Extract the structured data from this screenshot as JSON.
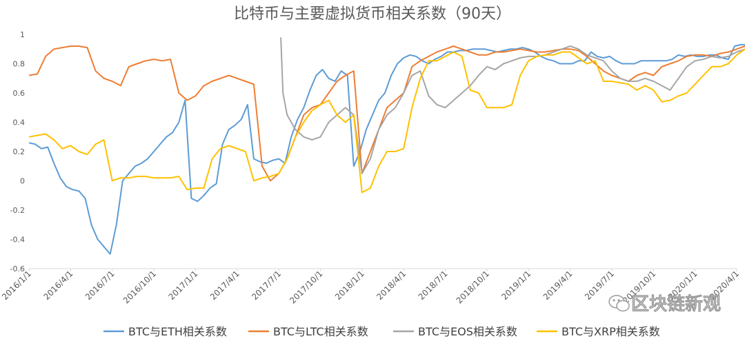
{
  "chart_data": {
    "type": "line",
    "title": "比特币与主要虚拟货币相关系数（90天）",
    "ylim": [
      -0.6,
      1
    ],
    "y_ticks": [
      "1",
      "0.8",
      "0.6",
      "0.4",
      "0.2",
      "0",
      "-0.2",
      "-0.4",
      "-0.6"
    ],
    "x_ticks": [
      "2016/1/1",
      "2016/4/1",
      "2016/7/1",
      "2016/10/1",
      "2017/1/1",
      "2017/4/1",
      "2017/7/1",
      "2017/10/1",
      "2018/1/1",
      "2018/4/1",
      "2018/7/1",
      "2018/10/1",
      "2019/1/1",
      "2019/4/1",
      "2019/7/1",
      "2019/10/1",
      "2020/1/1",
      "2020/4/1"
    ],
    "grid": false,
    "legend_position": "bottom",
    "series": [
      {
        "name": "BTC与ETH相关系数",
        "color": "#5B9BD5",
        "x": [
          0,
          0.15,
          0.3,
          0.45,
          0.6,
          0.75,
          0.9,
          1.05,
          1.2,
          1.35,
          1.5,
          1.65,
          1.8,
          1.95,
          2.1,
          2.25,
          2.4,
          2.55,
          2.7,
          2.85,
          3.0,
          3.15,
          3.3,
          3.45,
          3.6,
          3.75,
          3.9,
          4.05,
          4.2,
          4.35,
          4.5,
          4.65,
          4.8,
          4.95,
          5.1,
          5.25,
          5.4,
          5.55,
          5.7,
          5.85,
          6.0,
          6.15,
          6.3,
          6.45,
          6.6,
          6.75,
          6.9,
          7.05,
          7.2,
          7.35,
          7.5,
          7.65,
          7.8,
          7.95,
          8.1,
          8.25,
          8.4,
          8.55,
          8.7,
          8.85,
          9.0,
          9.15,
          9.3,
          9.45,
          9.6,
          9.75,
          9.9,
          10.05,
          10.2,
          10.35,
          10.5,
          10.65,
          10.8,
          10.95,
          11.1,
          11.25,
          11.4,
          11.55,
          11.7,
          11.85,
          12.0,
          12.15,
          12.3,
          12.45,
          12.6,
          12.75,
          12.9,
          13.05,
          13.2,
          13.35,
          13.5,
          13.65,
          13.8,
          13.95,
          14.1,
          14.25,
          14.4,
          14.55,
          14.7,
          14.85,
          15.0,
          15.15,
          15.3,
          15.45,
          15.6,
          15.75,
          15.9,
          16.05,
          16.2,
          16.35,
          16.5,
          16.65,
          16.8,
          16.95,
          17.1,
          17.25,
          17.4
        ],
        "y": [
          0.26,
          0.25,
          0.22,
          0.23,
          0.12,
          0.02,
          -0.04,
          -0.06,
          -0.07,
          -0.12,
          -0.3,
          -0.4,
          -0.45,
          -0.5,
          -0.3,
          0.0,
          0.05,
          0.1,
          0.12,
          0.15,
          0.2,
          0.25,
          0.3,
          0.33,
          0.4,
          0.55,
          -0.12,
          -0.14,
          -0.1,
          -0.05,
          -0.02,
          0.25,
          0.35,
          0.38,
          0.42,
          0.52,
          0.15,
          0.13,
          0.12,
          0.14,
          0.15,
          0.12,
          0.3,
          0.42,
          0.5,
          0.62,
          0.72,
          0.76,
          0.7,
          0.68,
          0.75,
          0.72,
          0.1,
          0.2,
          0.35,
          0.45,
          0.55,
          0.6,
          0.72,
          0.8,
          0.84,
          0.86,
          0.85,
          0.82,
          0.8,
          0.83,
          0.85,
          0.88,
          0.88,
          0.89,
          0.89,
          0.9,
          0.9,
          0.9,
          0.89,
          0.88,
          0.89,
          0.9,
          0.9,
          0.91,
          0.9,
          0.88,
          0.85,
          0.83,
          0.82,
          0.8,
          0.8,
          0.8,
          0.82,
          0.82,
          0.88,
          0.85,
          0.84,
          0.85,
          0.82,
          0.8,
          0.8,
          0.8,
          0.82,
          0.82,
          0.82,
          0.82,
          0.82,
          0.83,
          0.86,
          0.85,
          0.86,
          0.85,
          0.85,
          0.86,
          0.86,
          0.84,
          0.83,
          0.92,
          0.93,
          0.93,
          0.93
        ]
      },
      {
        "name": "BTC与LTC相关系数",
        "color": "#ED7D31",
        "x": [
          0,
          0.2,
          0.4,
          0.6,
          0.8,
          1.0,
          1.2,
          1.4,
          1.6,
          1.8,
          2.0,
          2.2,
          2.4,
          2.6,
          2.8,
          3.0,
          3.2,
          3.4,
          3.6,
          3.8,
          4.0,
          4.2,
          4.4,
          4.6,
          4.8,
          5.0,
          5.2,
          5.4,
          5.6,
          5.8,
          6.0,
          6.2,
          6.4,
          6.6,
          6.8,
          7.0,
          7.2,
          7.4,
          7.6,
          7.8,
          8.0,
          8.2,
          8.4,
          8.6,
          8.8,
          9.0,
          9.2,
          9.4,
          9.6,
          9.8,
          10.0,
          10.2,
          10.4,
          10.6,
          10.8,
          11.0,
          11.2,
          11.4,
          11.6,
          11.8,
          12.0,
          12.2,
          12.4,
          12.6,
          12.8,
          13.0,
          13.2,
          13.4,
          13.6,
          13.8,
          14.0,
          14.2,
          14.4,
          14.6,
          14.8,
          15.0,
          15.2,
          15.4,
          15.6,
          15.8,
          16.0,
          16.2,
          16.4,
          16.6,
          16.8,
          17.0,
          17.2,
          17.4
        ],
        "y": [
          0.72,
          0.73,
          0.85,
          0.9,
          0.91,
          0.92,
          0.92,
          0.91,
          0.75,
          0.7,
          0.68,
          0.65,
          0.78,
          0.8,
          0.82,
          0.83,
          0.82,
          0.83,
          0.6,
          0.55,
          0.58,
          0.65,
          0.68,
          0.7,
          0.72,
          0.7,
          0.68,
          0.66,
          0.1,
          0.0,
          0.05,
          0.15,
          0.3,
          0.45,
          0.5,
          0.52,
          0.6,
          0.68,
          0.72,
          0.75,
          0.05,
          0.2,
          0.35,
          0.5,
          0.55,
          0.6,
          0.78,
          0.82,
          0.85,
          0.88,
          0.9,
          0.92,
          0.9,
          0.88,
          0.86,
          0.86,
          0.88,
          0.88,
          0.89,
          0.9,
          0.89,
          0.88,
          0.88,
          0.89,
          0.9,
          0.9,
          0.89,
          0.85,
          0.8,
          0.75,
          0.72,
          0.7,
          0.68,
          0.72,
          0.74,
          0.72,
          0.78,
          0.8,
          0.82,
          0.85,
          0.86,
          0.86,
          0.85,
          0.87,
          0.88,
          0.9,
          0.92,
          0.92
        ]
      },
      {
        "name": "BTC与EOS相关系数",
        "color": "#A5A5A5",
        "x": [
          6.05,
          6.1,
          6.2,
          6.4,
          6.6,
          6.8,
          7.0,
          7.2,
          7.4,
          7.6,
          7.8,
          8.0,
          8.2,
          8.4,
          8.6,
          8.8,
          9.0,
          9.2,
          9.4,
          9.6,
          9.8,
          10.0,
          10.2,
          10.4,
          10.6,
          10.8,
          11.0,
          11.2,
          11.4,
          11.6,
          11.8,
          12.0,
          12.2,
          12.4,
          12.6,
          12.8,
          13.0,
          13.2,
          13.4,
          13.6,
          13.8,
          14.0,
          14.2,
          14.4,
          14.6,
          14.8,
          15.0,
          15.2,
          15.4,
          15.6,
          15.8,
          16.0,
          16.2,
          16.4,
          16.6,
          16.8,
          17.0,
          17.2,
          17.4
        ],
        "y": [
          0.98,
          0.6,
          0.45,
          0.35,
          0.3,
          0.28,
          0.3,
          0.4,
          0.45,
          0.5,
          0.45,
          0.05,
          0.15,
          0.35,
          0.45,
          0.5,
          0.6,
          0.72,
          0.75,
          0.58,
          0.52,
          0.5,
          0.55,
          0.6,
          0.65,
          0.72,
          0.78,
          0.76,
          0.8,
          0.82,
          0.84,
          0.85,
          0.85,
          0.86,
          0.88,
          0.9,
          0.92,
          0.9,
          0.86,
          0.84,
          0.82,
          0.75,
          0.7,
          0.68,
          0.68,
          0.7,
          0.68,
          0.65,
          0.62,
          0.7,
          0.78,
          0.82,
          0.83,
          0.85,
          0.84,
          0.85,
          0.88,
          0.9,
          0.92
        ]
      },
      {
        "name": "BTC与XRP相关系数",
        "color": "#FFC000",
        "x": [
          0,
          0.2,
          0.4,
          0.6,
          0.8,
          1.0,
          1.2,
          1.4,
          1.6,
          1.8,
          2.0,
          2.2,
          2.4,
          2.6,
          2.8,
          3.0,
          3.2,
          3.4,
          3.6,
          3.8,
          4.0,
          4.2,
          4.4,
          4.6,
          4.8,
          5.0,
          5.2,
          5.4,
          5.6,
          5.8,
          6.0,
          6.2,
          6.4,
          6.6,
          6.8,
          7.0,
          7.2,
          7.4,
          7.6,
          7.8,
          8.0,
          8.2,
          8.4,
          8.6,
          8.8,
          9.0,
          9.2,
          9.4,
          9.6,
          9.8,
          10.0,
          10.2,
          10.4,
          10.6,
          10.8,
          11.0,
          11.2,
          11.4,
          11.6,
          11.8,
          12.0,
          12.2,
          12.4,
          12.6,
          12.8,
          13.0,
          13.2,
          13.4,
          13.6,
          13.8,
          14.0,
          14.2,
          14.4,
          14.6,
          14.8,
          15.0,
          15.2,
          15.4,
          15.6,
          15.8,
          16.0,
          16.2,
          16.4,
          16.6,
          16.8,
          17.0,
          17.2,
          17.4
        ],
        "y": [
          0.3,
          0.31,
          0.32,
          0.28,
          0.22,
          0.24,
          0.2,
          0.18,
          0.25,
          0.28,
          0.0,
          0.02,
          0.02,
          0.03,
          0.03,
          0.02,
          0.02,
          0.02,
          0.03,
          -0.06,
          -0.05,
          -0.05,
          0.15,
          0.22,
          0.24,
          0.22,
          0.2,
          0.0,
          0.02,
          0.03,
          0.05,
          0.15,
          0.3,
          0.4,
          0.48,
          0.52,
          0.55,
          0.45,
          0.4,
          0.45,
          -0.08,
          -0.05,
          0.1,
          0.2,
          0.2,
          0.22,
          0.5,
          0.7,
          0.82,
          0.82,
          0.85,
          0.88,
          0.85,
          0.62,
          0.6,
          0.5,
          0.5,
          0.5,
          0.52,
          0.72,
          0.82,
          0.85,
          0.86,
          0.86,
          0.88,
          0.88,
          0.84,
          0.8,
          0.82,
          0.68,
          0.68,
          0.67,
          0.66,
          0.62,
          0.65,
          0.62,
          0.54,
          0.55,
          0.58,
          0.6,
          0.66,
          0.72,
          0.78,
          0.78,
          0.8,
          0.86,
          0.9,
          0.88
        ]
      }
    ]
  },
  "watermark": {
    "text": "区块链新观",
    "icon": "wechat-icon"
  }
}
